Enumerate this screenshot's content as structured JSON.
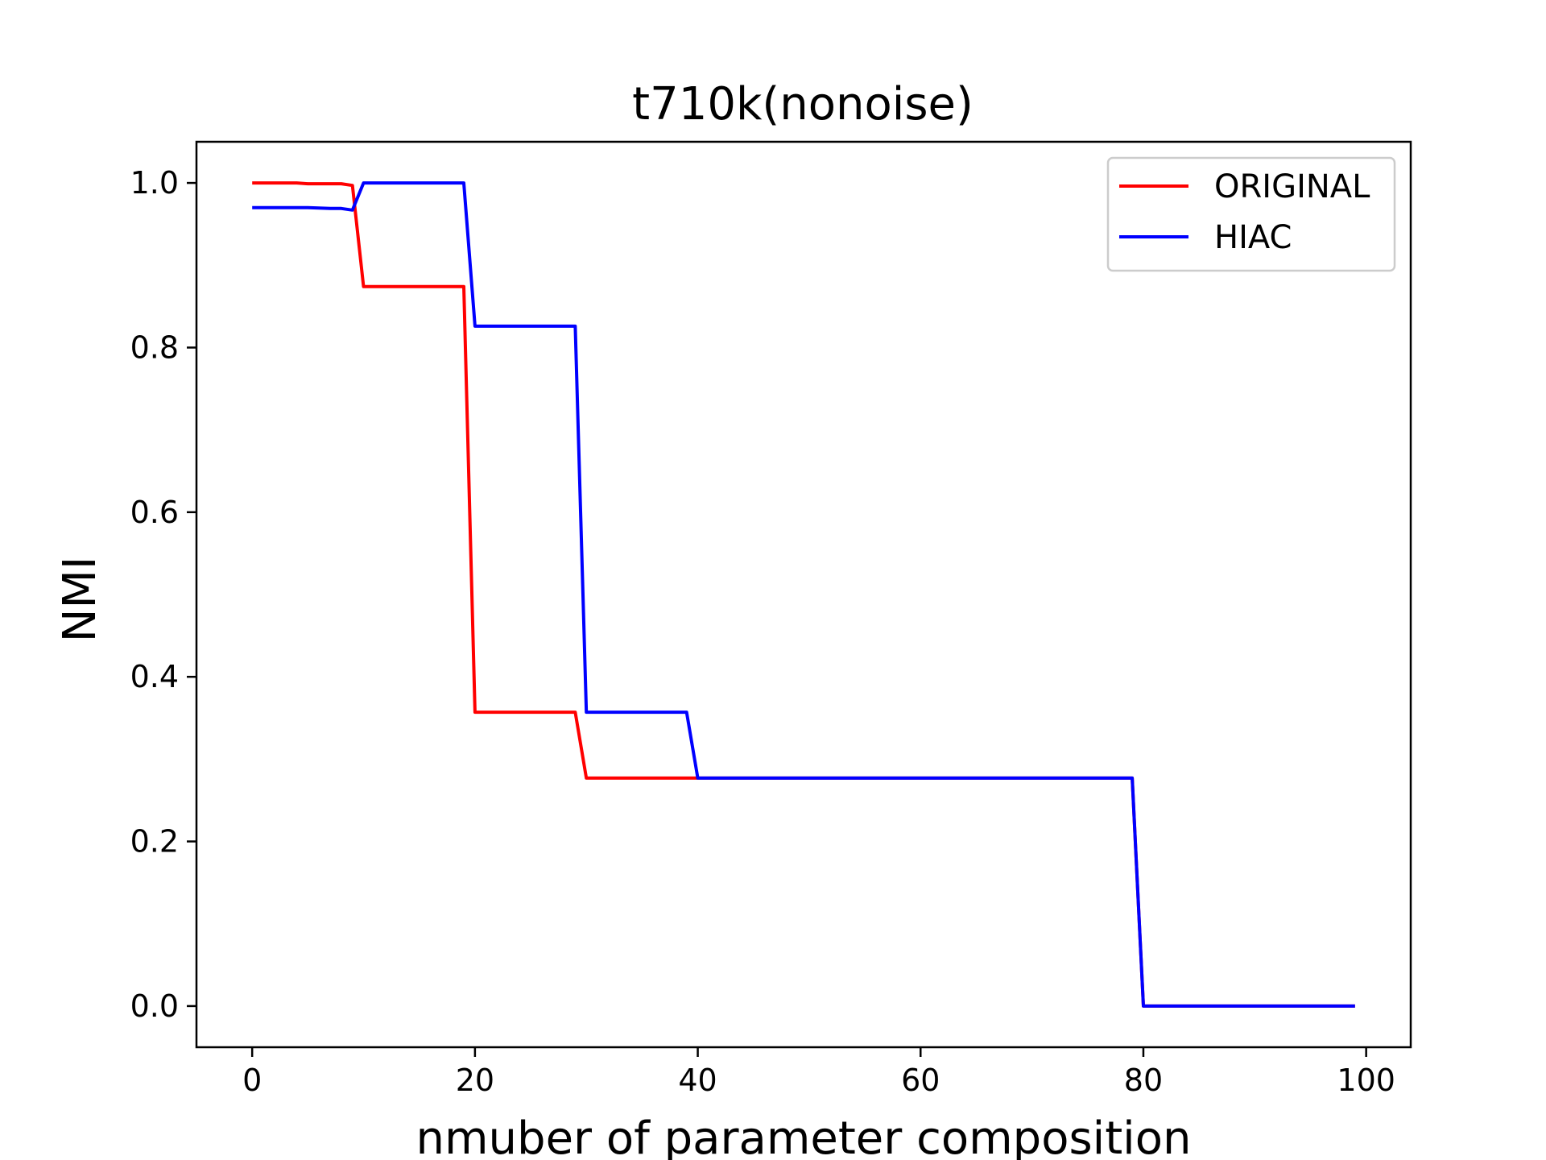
{
  "chart_data": {
    "type": "line",
    "title": "t710k(nonoise)",
    "xlabel": "nmuber of parameter composition",
    "ylabel": "NMI",
    "xlim": [
      -5,
      104
    ],
    "ylim": [
      -0.05,
      1.05
    ],
    "xticks": [
      0,
      20,
      40,
      60,
      80,
      100
    ],
    "xtick_labels": [
      "0",
      "20",
      "40",
      "60",
      "80",
      "100"
    ],
    "yticks": [
      0.0,
      0.2,
      0.4,
      0.6,
      0.8,
      1.0
    ],
    "ytick_labels": [
      "0.0",
      "0.2",
      "0.4",
      "0.6",
      "0.8",
      "1.0"
    ],
    "grid": false,
    "legend_position": "top-right",
    "series": [
      {
        "name": "ORIGINAL",
        "color": "#ff0000",
        "x": [
          0,
          4,
          5,
          8,
          9,
          10,
          19,
          20,
          29,
          30,
          39,
          40,
          79,
          80,
          99
        ],
        "y": [
          1.0,
          1.0,
          0.999,
          0.999,
          0.997,
          0.874,
          0.874,
          0.357,
          0.357,
          0.277,
          0.277,
          0.277,
          0.277,
          0.0,
          0.0
        ]
      },
      {
        "name": "HIAC",
        "color": "#0000ff",
        "x": [
          0,
          5,
          7,
          8,
          9,
          10,
          19,
          20,
          29,
          30,
          39,
          40,
          79,
          80,
          99
        ],
        "y": [
          0.97,
          0.97,
          0.969,
          0.969,
          0.967,
          1.0,
          1.0,
          0.826,
          0.826,
          0.357,
          0.357,
          0.277,
          0.277,
          0.0,
          0.0
        ]
      }
    ]
  }
}
